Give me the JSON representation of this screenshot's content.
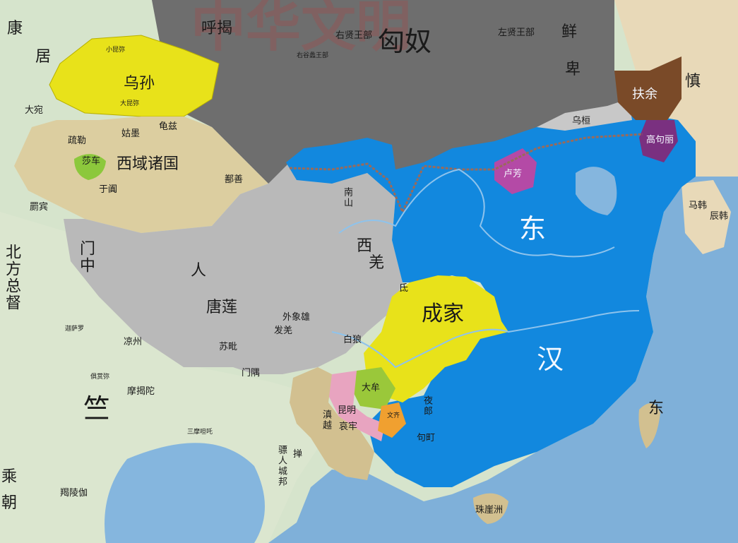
{
  "colors": {
    "sea": "#7fb0d9",
    "land": "#d7e6d0",
    "xiongnu": "#6e6e6e",
    "wusun": "#e8e21a",
    "xiyu": "#dccea0",
    "qiang": "#b9b9b9",
    "han": "#1288de",
    "chengjia": "#e8e21a",
    "fuyu": "#7a4a28",
    "goguryeo": "#7a3080",
    "lufang": "#b44aa6",
    "wuhuan": "#c8c8c8",
    "dalao": "#9ac83a",
    "kunming": "#e8a4c0",
    "wenqi": "#f0a030",
    "dian": "#d2c090",
    "suoche": "#8cc83c"
  },
  "labels": {
    "xiongnu": "匈奴",
    "hujie": "呼揭",
    "xianbei_1": "鲜",
    "xianbei_2": "卑",
    "wusun": "乌孙",
    "xiaokunmi": "小昆弥",
    "dakunmi": "大昆弥",
    "kangju_1": "康",
    "kangju_2": "居",
    "dayuan": "大宛",
    "qiuci": "龟兹",
    "shule": "疏勒",
    "gumo": "姑墨",
    "xiyu": "西域诸国",
    "suoche": "莎车",
    "yutian": "于阗",
    "shanshan": "鄯善",
    "jibin": "罽宾",
    "beifang_1": "北方总督",
    "ren": "人",
    "tangmao": "唐莲",
    "menzhong": "门中",
    "waixiangxiong": "外象雄",
    "xiqiang_1": "西",
    "xiqiang_2": "羌",
    "di": "氐",
    "chengjia": "成家",
    "dalao": "大牟",
    "kunming": "昆明",
    "aolao": "哀牢",
    "dianyue": "滇越",
    "wenqi": "文齐",
    "piaoren": "骠人城邦",
    "tianzhu": "竺",
    "dong": "东",
    "han": "汉",
    "wuhuan": "乌桓",
    "fuyu": "扶余",
    "shenjin": "慎",
    "gaogouli": "高句丽",
    "lufang": "卢芳",
    "mahan": "马韩",
    "chenhan": "辰韩",
    "dong_sea": "东",
    "zhuyazhou": "珠崖洲",
    "lianggeng": "凉州",
    "menyu": "门隅",
    "shan": "掸",
    "juelaqie": "羯陵伽",
    "mojietuo": "摩揭陀",
    "jushangmi": "俱赏弥",
    "jiasaluo": "迦萨罗",
    "sanmotuo": "三摩呾吒",
    "cheng": "乘",
    "chao": "朝",
    "jiuzhen": "句町",
    "fuqiang": "白狼",
    "kuifang": "夜郎",
    "youxianwang": "右贤王部",
    "zuoxianwang": "左贤王部",
    "yougu": "右谷蠡王部",
    "nanshan": "南山",
    "suyi": "苏毗",
    "fali": "发羌",
    "watermark": "中华文明"
  }
}
